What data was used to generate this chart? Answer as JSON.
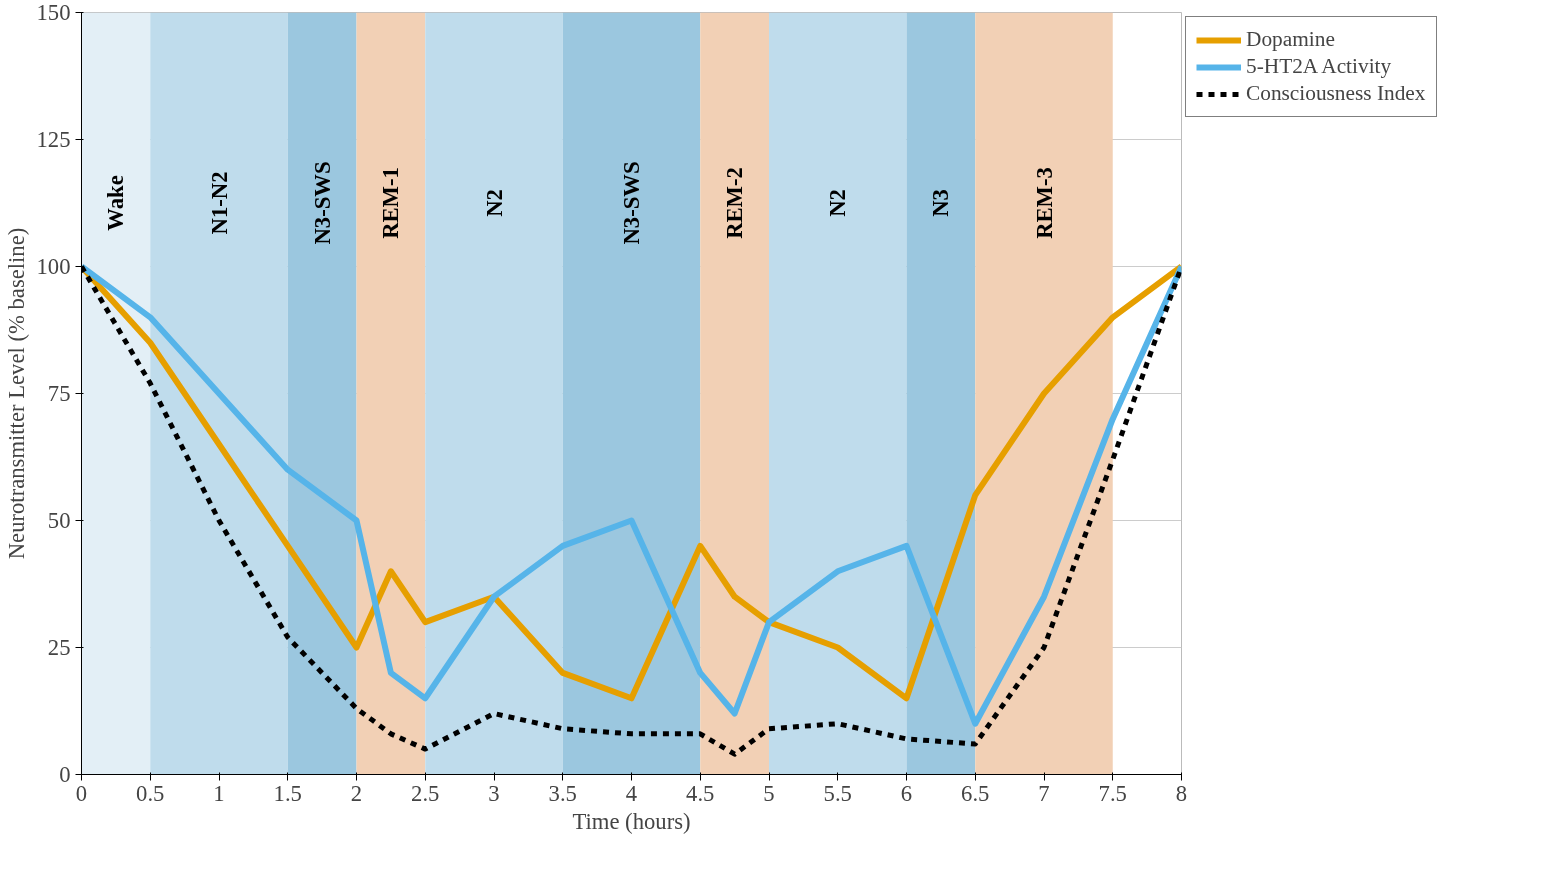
{
  "chart_data": {
    "type": "line",
    "xlabel": "Time (hours)",
    "ylabel": "Neurotransmitter Level (% baseline)",
    "x": [
      0,
      0.5,
      1,
      1.5,
      2,
      2.25,
      2.5,
      3,
      3.5,
      4,
      4.5,
      4.75,
      5,
      5.5,
      6,
      6.5,
      7,
      7.5,
      8
    ],
    "series": [
      {
        "name": "Dopamine",
        "color": "#e69f00",
        "line_style": "solid",
        "values": [
          100,
          85,
          65,
          45,
          25,
          40,
          30,
          35,
          20,
          15,
          45,
          35,
          30,
          25,
          15,
          55,
          75,
          90,
          100
        ]
      },
      {
        "name": "5-HT2A Activity",
        "color": "#56b4e9",
        "line_style": "solid",
        "values": [
          100,
          90,
          75,
          60,
          50,
          20,
          15,
          35,
          45,
          50,
          20,
          12,
          30,
          40,
          45,
          10,
          35,
          70,
          100
        ]
      },
      {
        "name": "Consciousness Index",
        "color": "#000000",
        "line_style": "dashed",
        "values": [
          100,
          77,
          50,
          27,
          13,
          8,
          5,
          12,
          9,
          8,
          8,
          4,
          9,
          10,
          7,
          6,
          25,
          62,
          100
        ]
      }
    ],
    "bands": [
      {
        "axis": "x",
        "from": 0,
        "to": 0.5,
        "label": "Wake",
        "color": "#e3eff6"
      },
      {
        "axis": "x",
        "from": 0.5,
        "to": 1.5,
        "label": "N1-N2",
        "color": "#bfdcec"
      },
      {
        "axis": "x",
        "from": 1.5,
        "to": 2,
        "label": "N3-SWS",
        "color": "#9bc7df"
      },
      {
        "axis": "x",
        "from": 2,
        "to": 2.5,
        "label": "REM-1",
        "color": "#f2d0b5"
      },
      {
        "axis": "x",
        "from": 2.5,
        "to": 3.5,
        "label": "N2",
        "color": "#bfdcec"
      },
      {
        "axis": "x",
        "from": 3.5,
        "to": 4.5,
        "label": "N3-SWS",
        "color": "#9bc7df"
      },
      {
        "axis": "x",
        "from": 4.5,
        "to": 5,
        "label": "REM-2",
        "color": "#f2d0b5"
      },
      {
        "axis": "x",
        "from": 5,
        "to": 6,
        "label": "N2",
        "color": "#bfdcec"
      },
      {
        "axis": "x",
        "from": 6,
        "to": 6.5,
        "label": "N3",
        "color": "#9bc7df"
      },
      {
        "axis": "x",
        "from": 6.5,
        "to": 7.5,
        "label": "REM-3",
        "color": "#f2d0b5"
      }
    ],
    "xlim": [
      0,
      8
    ],
    "ylim": [
      0,
      150
    ],
    "xticks": [
      0,
      0.5,
      1,
      1.5,
      2,
      2.5,
      3,
      3.5,
      4,
      4.5,
      5,
      5.5,
      6,
      6.5,
      7,
      7.5,
      8
    ],
    "yticks": [
      0,
      25,
      50,
      75,
      100,
      125,
      150
    ],
    "grid": "y",
    "legend": "top right",
    "marker": "none"
  }
}
